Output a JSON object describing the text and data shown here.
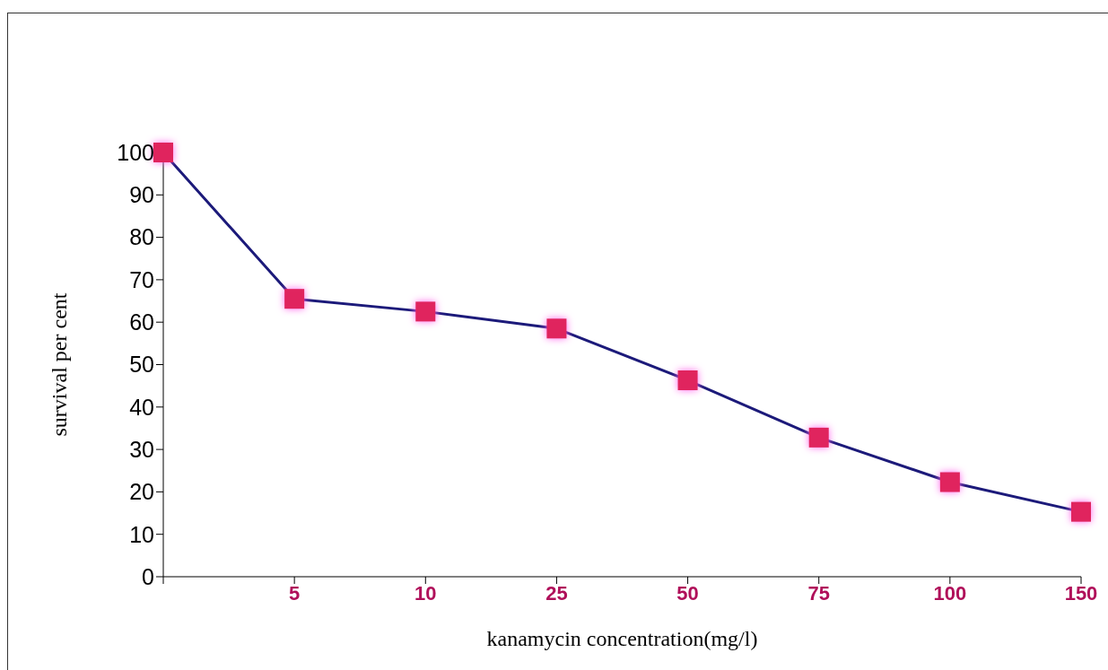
{
  "chart_data": {
    "type": "line",
    "xlabel": "kanamycin concentration(mg/l)",
    "ylabel": "survival per cent",
    "categories": [
      null,
      "5",
      "10",
      "25",
      "50",
      "75",
      "100",
      "150"
    ],
    "series": [
      {
        "color": "#1c1a7a",
        "values": [
          100,
          65.5,
          62.5,
          58.5,
          46.3,
          32.8,
          22.3,
          15.3
        ]
      }
    ],
    "ylim": [
      0,
      100
    ],
    "yticks": [
      0,
      10,
      20,
      30,
      40,
      50,
      60,
      70,
      80,
      90,
      100
    ],
    "grid": false,
    "legend": false,
    "marker": "square",
    "line_style": "solid"
  }
}
